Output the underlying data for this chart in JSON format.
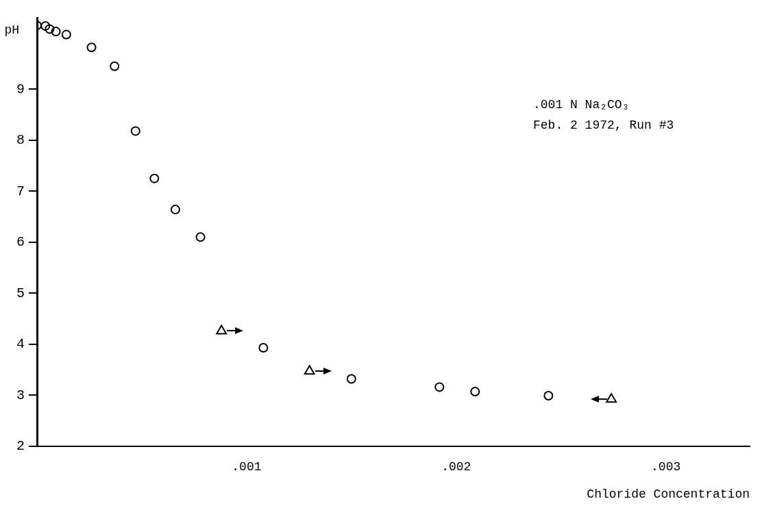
{
  "chart_data": {
    "type": "scatter",
    "xlabel": "Chloride Concentration",
    "ylabel": "pH",
    "annotations": [
      ".001 N Na₂CO₃",
      "Feb. 2 1972, Run #3"
    ],
    "xlim": [
      0,
      0.0034
    ],
    "ylim": [
      2,
      10.4
    ],
    "xticks": [
      {
        "value": 0,
        "label": null
      },
      {
        "value": 0.001,
        "label": ".001"
      },
      {
        "value": 0.002,
        "label": ".002"
      },
      {
        "value": 0.003,
        "label": ".003"
      }
    ],
    "yticks": [
      2,
      3,
      4,
      5,
      6,
      7,
      8,
      9
    ],
    "grid": false,
    "legend": false,
    "series": [
      {
        "color": "#000000",
        "marker": "circle",
        "x": [
          0,
          4e-05,
          6e-05,
          9e-05,
          0.00014,
          0.00026,
          0.00037,
          0.00047,
          0.00056,
          0.00066,
          0.00078,
          0.00108,
          0.0015,
          0.00192,
          0.00209,
          0.00244
        ],
        "values": [
          10.25,
          10.24,
          10.18,
          10.13,
          10.07,
          9.82,
          9.45,
          8.18,
          7.25,
          6.64,
          6.1,
          3.93,
          3.32,
          3.16,
          3.07,
          2.99
        ]
      },
      {
        "color": "#000000",
        "marker": "triangle",
        "x": [
          0.00088,
          0.0013,
          0.00274
        ],
        "values": [
          4.26,
          3.47,
          2.92
        ]
      }
    ]
  }
}
